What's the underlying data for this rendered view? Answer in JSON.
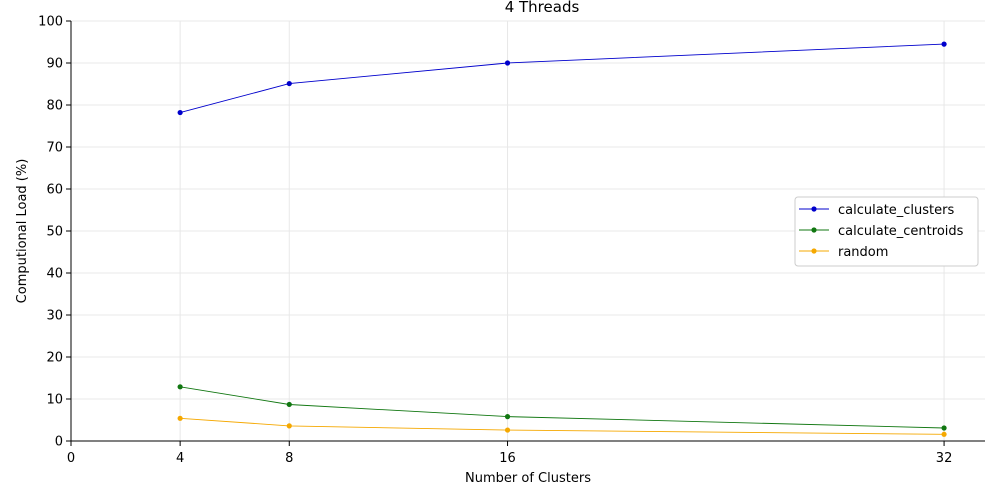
{
  "chart_data": {
    "type": "line",
    "title": "4 Threads",
    "xlabel": "Number of Clusters",
    "ylabel": "Computional Load (%)",
    "x": [
      4,
      8,
      16,
      32
    ],
    "xticks": [
      0,
      4,
      8,
      16,
      32
    ],
    "yticks": [
      0,
      10,
      20,
      30,
      40,
      50,
      60,
      70,
      80,
      90,
      100
    ],
    "xlim": [
      0,
      33.5
    ],
    "ylim": [
      0,
      100
    ],
    "grid": true,
    "legend_position": "center-right",
    "series": [
      {
        "name": "calculate_clusters",
        "color": "#0000cc",
        "values": [
          78.2,
          85.1,
          90.0,
          94.5
        ]
      },
      {
        "name": "calculate_centroids",
        "color": "#117711",
        "values": [
          12.9,
          8.7,
          5.8,
          3.1
        ]
      },
      {
        "name": "random",
        "color": "#f5a800",
        "values": [
          5.4,
          3.6,
          2.6,
          1.6
        ]
      }
    ]
  }
}
